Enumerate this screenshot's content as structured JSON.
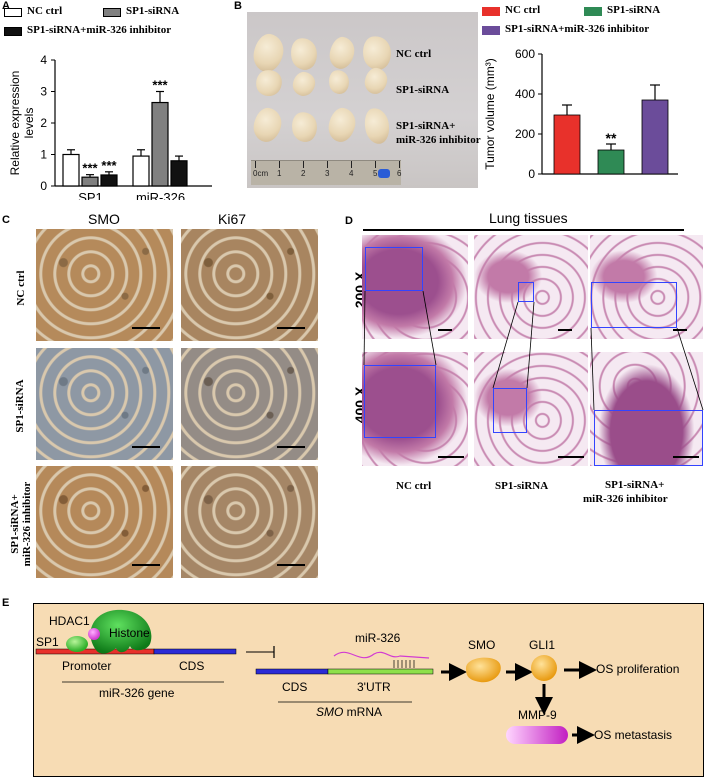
{
  "panelA": {
    "label": "A",
    "legend": [
      "NC ctrl",
      "SP1-siRNA",
      "SP1-siRNA+miR-326 inhibitor"
    ],
    "colors": [
      "#ffffff",
      "#808080",
      "#111111"
    ],
    "chart_data": {
      "type": "bar",
      "categories": [
        "SP1",
        "miR-326"
      ],
      "series": [
        {
          "name": "NC ctrl",
          "values": [
            1.0,
            0.95
          ],
          "err": [
            0.15,
            0.2
          ]
        },
        {
          "name": "SP1-siRNA",
          "values": [
            0.28,
            2.65
          ],
          "err": [
            0.08,
            0.35
          ]
        },
        {
          "name": "SP1-siRNA+miR-326 inhibitor",
          "values": [
            0.35,
            0.8
          ],
          "err": [
            0.1,
            0.15
          ]
        }
      ],
      "sig": [
        [
          "",
          "***",
          "***"
        ],
        [
          "",
          "***",
          ""
        ]
      ],
      "ylabel": "Relative expression levels",
      "ylim": [
        0,
        4
      ],
      "yticks": [
        "0",
        "1",
        "2",
        "3",
        "4"
      ]
    }
  },
  "panelB": {
    "label": "B",
    "rows": [
      "NC ctrl",
      "SP1-siRNA",
      "SP1-siRNA+",
      "miR-326 inhibitor"
    ],
    "ruler": [
      "0cm",
      "1",
      "2",
      "3",
      "4",
      "5",
      "6"
    ],
    "legend": [
      "NC ctrl",
      "SP1-siRNA",
      "SP1-siRNA+miR-326 inhibitor"
    ],
    "colors": [
      "#e8312b",
      "#2f8a55",
      "#6b4c9a"
    ],
    "chart_data": {
      "type": "bar",
      "categories": [
        "NC ctrl",
        "SP1-siRNA",
        "SP1-siRNA+miR-326 inhibitor"
      ],
      "values": [
        295,
        120,
        370
      ],
      "err": [
        50,
        30,
        75
      ],
      "sig": [
        "",
        "**",
        ""
      ],
      "ylabel": "Tumor volume (mm³)",
      "ylim": [
        0,
        600
      ],
      "yticks": [
        "0",
        "200",
        "400",
        "600"
      ]
    }
  },
  "panelC": {
    "label": "C",
    "cols": [
      "SMO",
      "Ki67"
    ],
    "rows": [
      "NC ctrl",
      "SP1-siRNA",
      "SP1-siRNA+",
      "miR-326 inhibitor"
    ]
  },
  "panelD": {
    "label": "D",
    "title": "Lung tissues",
    "rows": [
      "200 X",
      "400 X"
    ],
    "cols": [
      "NC ctrl",
      "SP1-siRNA",
      "SP1-siRNA+",
      "miR-326 inhibitor"
    ]
  },
  "panelE": {
    "label": "E",
    "hdac1": "HDAC1",
    "histone": "Histone",
    "sp1": "SP1",
    "promoter": "Promoter",
    "cds": "CDS",
    "gene": "miR-326 gene",
    "mir": "miR-326",
    "cds2": "CDS",
    "utr": "3'UTR",
    "smo_mrna_italic": "SMO",
    "smo_mrna_rest": " mRNA",
    "smo": "SMO",
    "gli1": "GLI1",
    "mmp9": "MMP-9",
    "prolif": "OS proliferation",
    "metas": "OS metastasis"
  }
}
